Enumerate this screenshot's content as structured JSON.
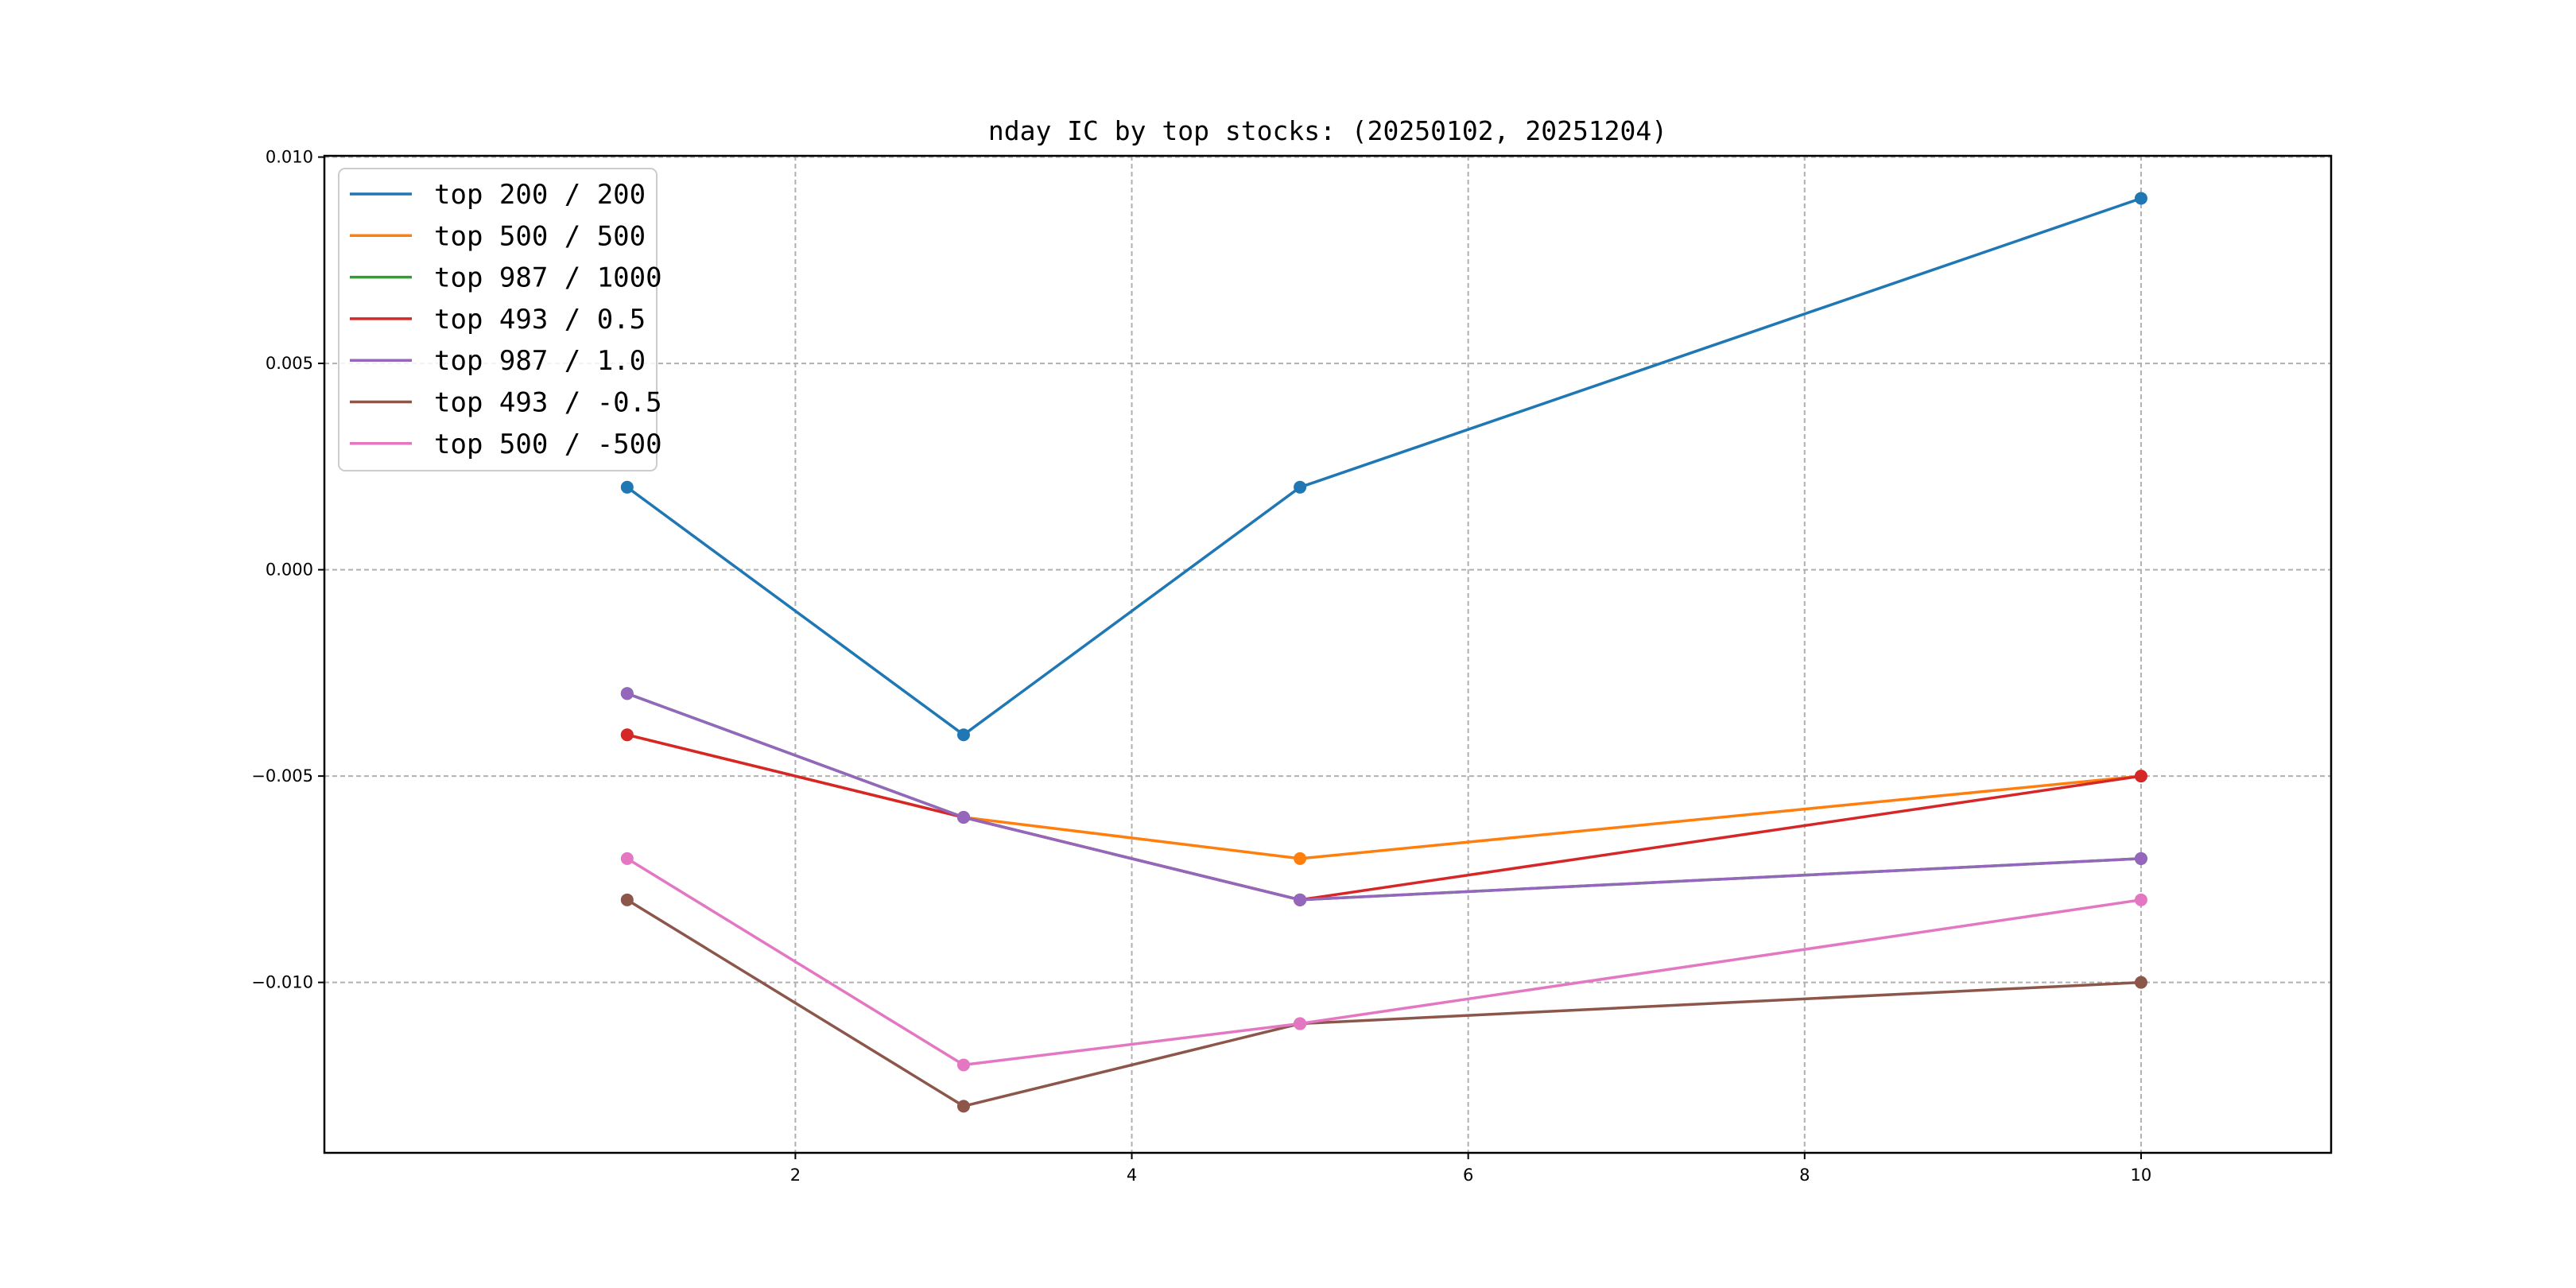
{
  "chart_data": {
    "type": "line",
    "title": "nday IC by top stocks: (20250102, 20251204)",
    "xlabel": "",
    "ylabel": "",
    "x": [
      1,
      3,
      5,
      10
    ],
    "xlim": [
      -0.8,
      11.13
    ],
    "ylim": [
      -0.01413,
      0.01003
    ],
    "xticks": [
      2,
      4,
      6,
      8,
      10
    ],
    "xtick_labels": [
      "2",
      "4",
      "6",
      "8",
      "10"
    ],
    "yticks": [
      0.01,
      0.005,
      0.0,
      -0.005,
      -0.01
    ],
    "ytick_labels": [
      "0.010",
      "0.005",
      "0.000",
      "−0.005",
      "−0.010"
    ],
    "grid": true,
    "legend_position": "top-left",
    "series": [
      {
        "name": "top 200 / 200",
        "color": "#1f77b4",
        "values": [
          0.002,
          -0.004,
          0.002,
          0.009
        ]
      },
      {
        "name": "top 500 / 500",
        "color": "#ff7f0e",
        "values": [
          -0.004,
          -0.006,
          -0.007,
          -0.005
        ]
      },
      {
        "name": "top 987 / 1000",
        "color": "#2ca02c",
        "values": [
          -0.003,
          -0.006,
          -0.008,
          -0.007
        ]
      },
      {
        "name": "top 493 / 0.5",
        "color": "#d62728",
        "values": [
          -0.004,
          -0.006,
          -0.008,
          -0.005
        ]
      },
      {
        "name": "top 987 / 1.0",
        "color": "#9467bd",
        "values": [
          -0.003,
          -0.006,
          -0.008,
          -0.007
        ]
      },
      {
        "name": "top 493 / -0.5",
        "color": "#8c564b",
        "values": [
          -0.008,
          -0.013,
          -0.011,
          -0.01
        ]
      },
      {
        "name": "top 500 / -500",
        "color": "#e377c2",
        "values": [
          -0.007,
          -0.012,
          -0.011,
          -0.008
        ]
      }
    ]
  }
}
